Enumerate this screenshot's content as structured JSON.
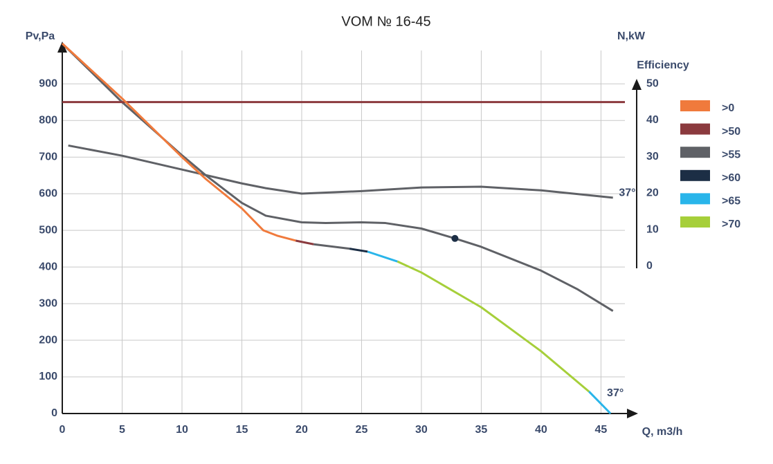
{
  "chart_data": {
    "type": "line",
    "title": "VOM № 16-45",
    "x_label": "Q, m3/h",
    "y_label": "Pv,Pa",
    "y2_label": "N,kW",
    "y2_label_2": "Efficiency",
    "xlim": [
      0,
      47
    ],
    "xticks": [
      0,
      5,
      10,
      15,
      20,
      25,
      30,
      35,
      40,
      45
    ],
    "ylim": [
      0,
      1010
    ],
    "yticks": [
      0,
      100,
      200,
      300,
      400,
      500,
      600,
      700,
      800,
      900
    ],
    "y2lim": [
      0,
      51
    ],
    "y2ticks": [
      0,
      10,
      20,
      30,
      40,
      50
    ],
    "grid": true,
    "series": [
      {
        "color": "#5f6166",
        "x": [
          0,
          5,
          10,
          12,
          15,
          17,
          20,
          22,
          25,
          27,
          30,
          32.8,
          35,
          40,
          43,
          46
        ],
        "values": [
          1010,
          850,
          705,
          650,
          575,
          540,
          522,
          520,
          522,
          520,
          505,
          478,
          455,
          390,
          340,
          280
        ]
      },
      {
        "color": "#1c2e45",
        "marker": true,
        "x": [
          32.8
        ],
        "values": [
          478
        ]
      },
      {
        "color": "#5f6166",
        "axis": "y2",
        "x": [
          0.5,
          5,
          10,
          15,
          17,
          20,
          25,
          30,
          35,
          40,
          46
        ],
        "values": [
          33.1,
          30.3,
          26.5,
          22.7,
          21.4,
          19.9,
          20.6,
          21.6,
          21.8,
          20.8,
          18.8
        ]
      },
      {
        "color": "#8b3a3e",
        "axis": "y2",
        "x": [
          0,
          47
        ],
        "values": [
          45,
          45
        ]
      },
      {
        "name": ">0",
        "color": "#f07a3c",
        "x": [
          0,
          5,
          10,
          12,
          15,
          16.8,
          18,
          19.5
        ],
        "values": [
          1010,
          860,
          700,
          640,
          560,
          500,
          485,
          472
        ]
      },
      {
        "name": ">50",
        "color": "#8b3a3e",
        "x": [
          19.5,
          21
        ],
        "values": [
          472,
          462
        ]
      },
      {
        "name": ">55",
        "color": "#5f6166",
        "x": [
          21,
          24
        ],
        "values": [
          462,
          450
        ]
      },
      {
        "name": ">60",
        "color": "#1c2e45",
        "x": [
          24,
          25.5
        ],
        "values": [
          450,
          442
        ]
      },
      {
        "name": ">65",
        "color": "#29b5ea",
        "x": [
          25.5,
          28
        ],
        "values": [
          442,
          415
        ]
      },
      {
        "name": ">70",
        "color": "#a6cf3a",
        "x": [
          28,
          30,
          35,
          40,
          44
        ],
        "values": [
          415,
          385,
          290,
          170,
          60
        ]
      },
      {
        "color": "#29b5ea",
        "x": [
          44,
          45.8
        ],
        "values": [
          60,
          0
        ]
      }
    ],
    "annotations": [
      {
        "text": "37°",
        "x": 46.5,
        "y": 20,
        "axis": "y2"
      },
      {
        "text": "37°",
        "x": 45.5,
        "y": 55
      }
    ]
  }
}
